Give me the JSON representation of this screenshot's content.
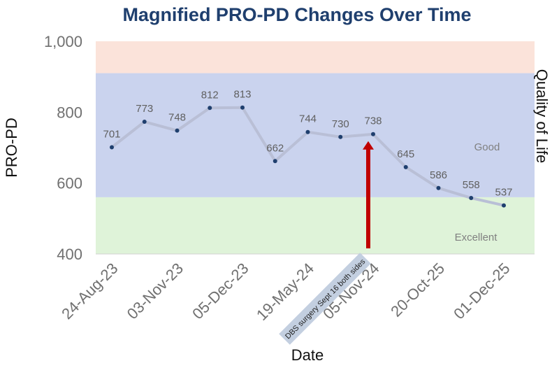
{
  "chart_data": {
    "type": "line",
    "title": "Magnified PRO-PD Changes Over Time",
    "xlabel": "Date",
    "ylabel": "PRO-PD",
    "y2label": "Quality of Life",
    "ylim": [
      400,
      1000
    ],
    "yticks": [
      "400",
      "600",
      "800",
      "1,000"
    ],
    "x_tick_labels": [
      "24-Aug-23",
      "03-Nov-23",
      "05-Dec-23",
      "19-May-24",
      "05-Nov-24",
      "20-Oct-25",
      "01-Dec-25"
    ],
    "values": [
      701,
      773,
      748,
      812,
      813,
      662,
      744,
      730,
      738,
      645,
      586,
      558,
      537
    ],
    "bands": [
      {
        "label": "",
        "from": 910,
        "to": 1000,
        "color": "#fbe3da"
      },
      {
        "label": "Good",
        "from": 560,
        "to": 910,
        "color": "#cad3ee"
      },
      {
        "label": "Excellent",
        "from": 400,
        "to": 560,
        "color": "#dff3d9"
      }
    ],
    "annotation": {
      "text": "DBS surgery Sept 16 both sides",
      "point_index": 8,
      "arrow_color": "#c00000"
    },
    "line_color": "#b9bfd6",
    "marker_color": "#1f3f6e",
    "grid": false
  }
}
